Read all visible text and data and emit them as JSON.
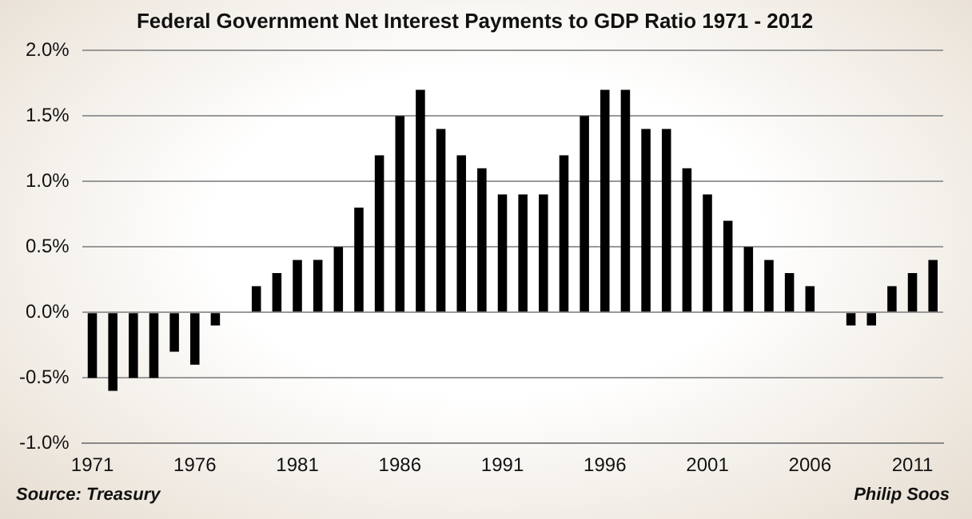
{
  "chart_data": {
    "type": "bar",
    "title": "Federal Government Net Interest Payments to GDP Ratio 1971 - 2012",
    "categories": [
      "1971",
      null,
      null,
      null,
      null,
      "1976",
      null,
      null,
      null,
      null,
      "1981",
      null,
      null,
      null,
      null,
      "1986",
      null,
      null,
      null,
      null,
      "1991",
      null,
      null,
      null,
      null,
      "1996",
      null,
      null,
      null,
      null,
      "2001",
      null,
      null,
      null,
      null,
      "2006",
      null,
      null,
      null,
      null,
      "2011",
      null
    ],
    "values": [
      -0.5,
      -0.6,
      -0.5,
      -0.5,
      -0.3,
      -0.4,
      -0.1,
      0,
      0.2,
      0.3,
      0.4,
      0.4,
      0.5,
      0.8,
      1.2,
      1.5,
      1.7,
      1.4,
      1.2,
      1.1,
      0.9,
      0.9,
      0.9,
      1.2,
      1.5,
      1.7,
      1.7,
      1.4,
      1.4,
      1.1,
      0.9,
      0.7,
      0.5,
      0.4,
      0.3,
      0.2,
      0,
      -0.1,
      -0.1,
      0.2,
      0.3,
      0.4
    ],
    "color": "#000000",
    "ylim": [
      -1,
      2
    ],
    "yticks": [
      {
        "value": -1,
        "label": "-1.0%"
      },
      {
        "value": -0.5,
        "label": "-0.5%"
      },
      {
        "value": 0,
        "label": "0.0%"
      },
      {
        "value": 0.5,
        "label": "0.5%"
      },
      {
        "value": 1,
        "label": "1.0%"
      },
      {
        "value": 1.5,
        "label": "1.5%"
      },
      {
        "value": 2,
        "label": "2.0%"
      }
    ],
    "grid": "y",
    "annotations": [
      "Source: Treasury",
      "Philip Soos"
    ]
  }
}
